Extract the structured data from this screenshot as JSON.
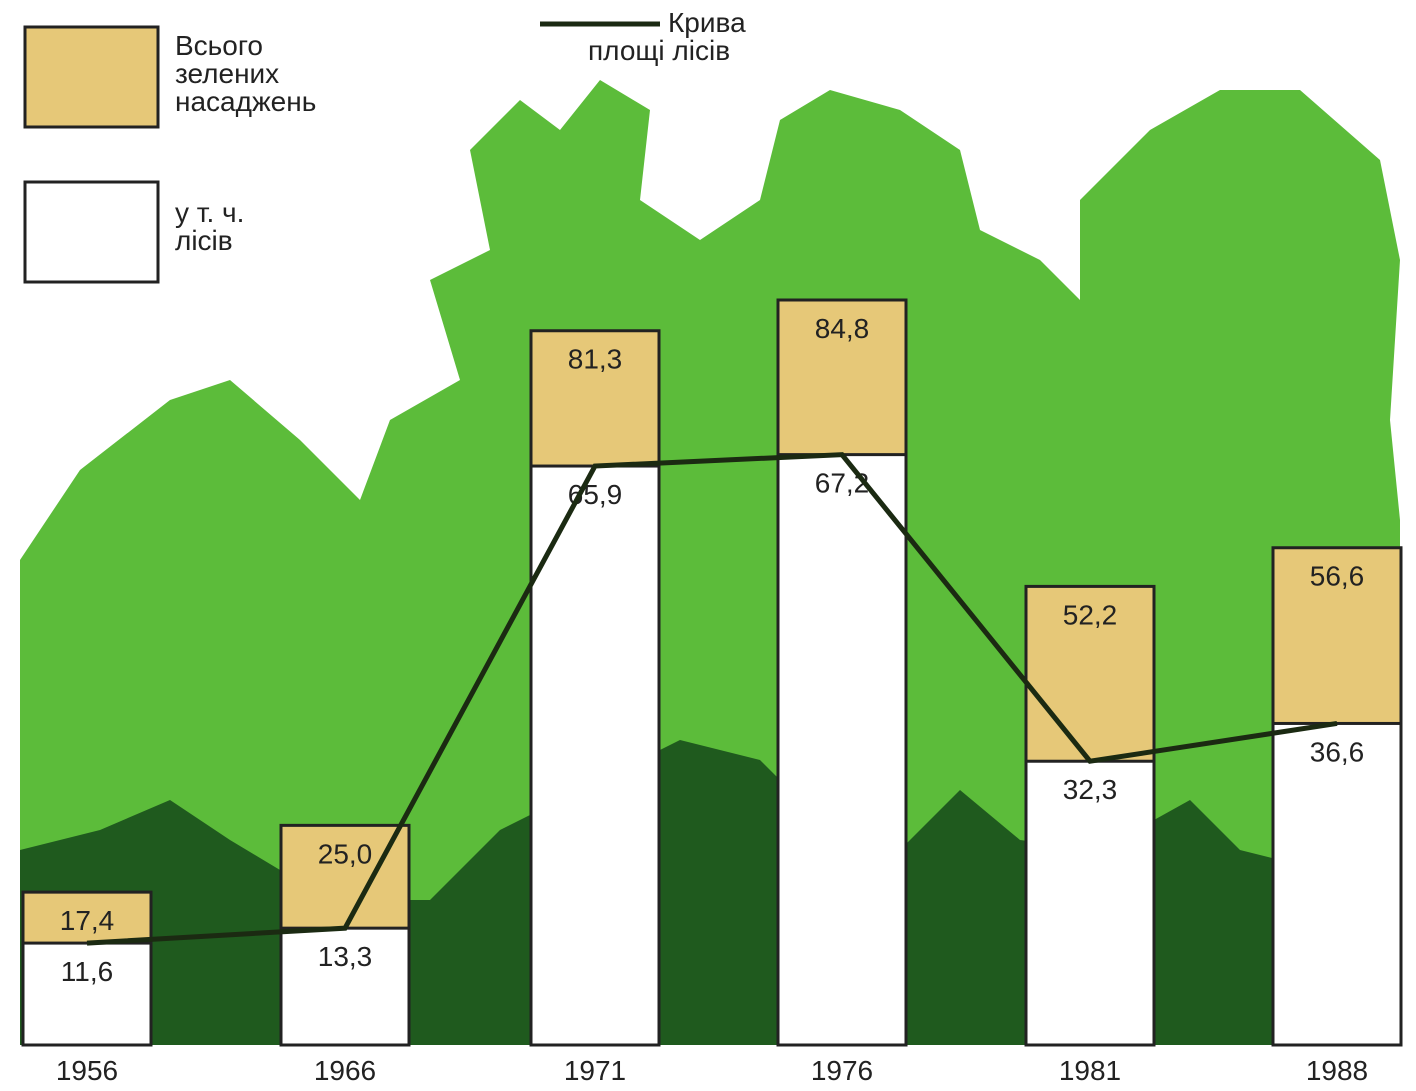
{
  "chart_data": {
    "type": "bar",
    "categories": [
      "1956",
      "1966",
      "1971",
      "1976",
      "1981",
      "1988"
    ],
    "series": [
      {
        "name": "Всього\nзелених\nнасаджень",
        "color": "#e6c878",
        "values": [
          17.4,
          25.0,
          81.3,
          84.8,
          52.2,
          56.6
        ],
        "value_labels": [
          "17,4",
          "25,0",
          "81,3",
          "84,8",
          "52,2",
          "56,6"
        ]
      },
      {
        "name": "у т. ч.\nлісів",
        "color": "#ffffff",
        "values": [
          11.6,
          13.3,
          65.9,
          67.2,
          32.3,
          36.6
        ],
        "value_labels": [
          "11,6",
          "13,3",
          "65,9",
          "67,2",
          "32,3",
          "36,6"
        ]
      }
    ],
    "line": {
      "name": "Крива\nплощі лісів",
      "color": "#1b2a12"
    }
  }
}
